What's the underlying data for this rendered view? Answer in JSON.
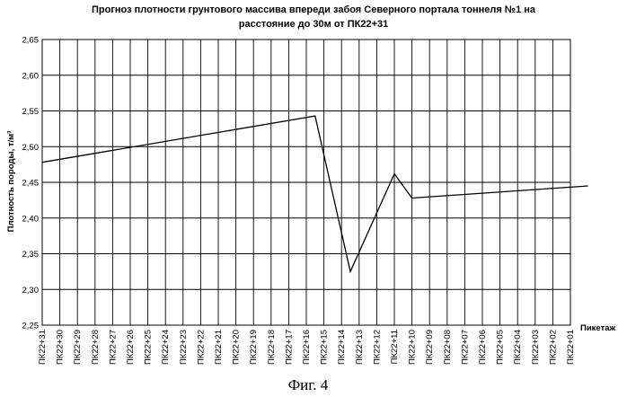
{
  "chart_data": {
    "type": "line",
    "title_lines": [
      "Прогноз плотности грунтового массива впереди забоя Северного портала тоннеля №1 на",
      "расстояние до 30м от ПК22+31"
    ],
    "ylabel": "Плотность породы, т/м³",
    "xlabel": "Пикетаж",
    "ylim": [
      2.25,
      2.65
    ],
    "yticks": [
      "2,25",
      "2,30",
      "2,35",
      "2,40",
      "2,45",
      "2,50",
      "2,55",
      "2,60",
      "2,65"
    ],
    "categories": [
      "ПК22+31",
      "ПК22+30",
      "ПК22+29",
      "ПК22+28",
      "ПК22+27",
      "ПК22+26",
      "ПК22+25",
      "ПК22+24",
      "ПК22+23",
      "ПК22+22",
      "ПК22+21",
      "ПК22+20",
      "ПК22+19",
      "ПК22+18",
      "ПК22+17",
      "ПК22+16",
      "ПК22+15",
      "ПК22+14",
      "ПК22+13",
      "ПК22+12",
      "ПК22+11",
      "ПК22+10",
      "ПК22+09",
      "ПК22+08",
      "ПК22+07",
      "ПК22+06",
      "ПК22+05",
      "ПК22+04",
      "ПК22+03",
      "ПК22+02",
      "ПК22+01"
    ],
    "grid": true,
    "series": [
      {
        "x": [
          0,
          15.5,
          17.5,
          20,
          21,
          31
        ],
        "values": [
          2.478,
          2.543,
          2.325,
          2.462,
          2.428,
          2.445
        ]
      }
    ]
  },
  "caption": "Фиг. 4"
}
